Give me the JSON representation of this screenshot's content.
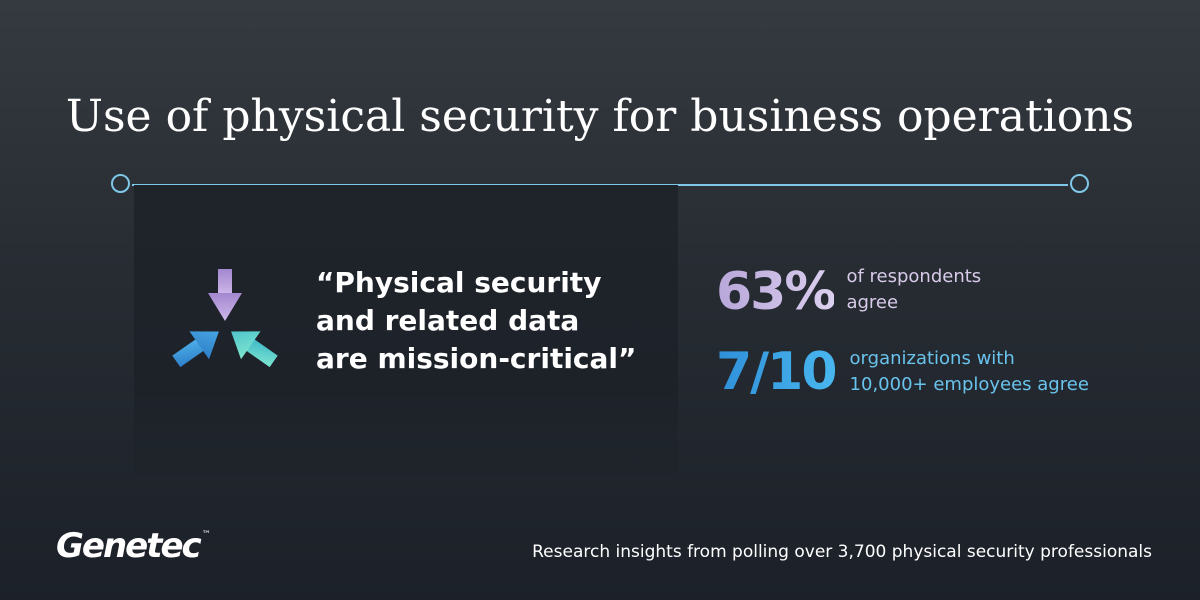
{
  "title": "Use of physical security for business operations",
  "quote": {
    "lines": [
      "“Physical security",
      "and related data",
      "are mission-critical”"
    ]
  },
  "stats": [
    {
      "value": "63%",
      "text_lines": [
        "of respondents",
        "agree"
      ],
      "color": "#c9b9e4"
    },
    {
      "value": "7/10",
      "text_lines": [
        "organizations with",
        "10,000+ employees agree"
      ],
      "color": "#3ba3e3"
    }
  ],
  "icons": {
    "arrows": "converging-arrows-icon"
  },
  "brand": {
    "logo": "Genetec",
    "trademark": "™"
  },
  "footer": "Research insights from polling over 3,700 physical security professionals",
  "colors": {
    "accent_line": "#7ec7e8",
    "purple": "#c9b9e4",
    "blue": "#3ba3e3",
    "teal": "#5fd3c7"
  }
}
